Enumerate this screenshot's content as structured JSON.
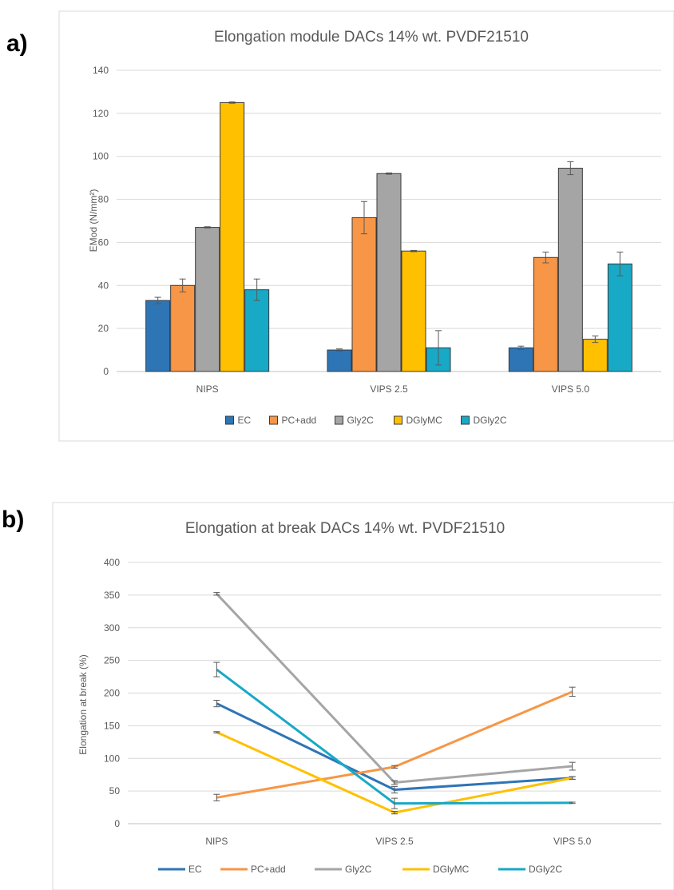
{
  "chart_data": [
    {
      "panel_label": "a)",
      "type": "bar",
      "title": "Elongation module DACs 14% wt. PVDF21510",
      "xlabel": "",
      "ylabel": "EMod (N/mm²)",
      "ylim": [
        0,
        140
      ],
      "yticks": [
        0,
        20,
        40,
        60,
        80,
        100,
        120,
        140
      ],
      "categories": [
        "NIPS",
        "VIPS 2.5",
        "VIPS 5.0"
      ],
      "grid": true,
      "legend_position": "bottom",
      "series": [
        {
          "name": "EC",
          "color": "#2e75b6",
          "values": [
            33,
            10,
            11
          ],
          "errors": [
            1.5,
            0.5,
            0.8
          ]
        },
        {
          "name": "PC+add",
          "color": "#f79646",
          "values": [
            40,
            71.5,
            53
          ],
          "errors": [
            3,
            7.5,
            2.5
          ]
        },
        {
          "name": "Gly2C",
          "color": "#a5a5a5",
          "values": [
            67,
            92,
            94.5
          ],
          "errors": [
            0.3,
            0.3,
            3
          ]
        },
        {
          "name": "DGlyMC",
          "color": "#ffc000",
          "values": [
            125,
            56,
            15
          ],
          "errors": [
            0.3,
            0.3,
            1.5
          ]
        },
        {
          "name": "DGly2C",
          "color": "#17a9c6",
          "values": [
            38,
            11,
            50
          ],
          "errors": [
            5,
            8,
            5.5
          ]
        }
      ]
    },
    {
      "panel_label": "b)",
      "type": "line",
      "title": "Elongation at break DACs 14% wt. PVDF21510",
      "xlabel": "",
      "ylabel": "Elongation at break (%)",
      "ylim": [
        0,
        400
      ],
      "yticks": [
        0,
        50,
        100,
        150,
        200,
        250,
        300,
        350,
        400
      ],
      "categories": [
        "NIPS",
        "VIPS 2.5",
        "VIPS 5.0"
      ],
      "grid": true,
      "legend_position": "bottom",
      "series": [
        {
          "name": "EC",
          "color": "#2e75b6",
          "values": [
            184,
            52,
            70
          ],
          "errors": [
            5,
            5,
            2
          ]
        },
        {
          "name": "PC+add",
          "color": "#f79646",
          "values": [
            40,
            87,
            202
          ],
          "errors": [
            5,
            2,
            7
          ]
        },
        {
          "name": "Gly2C",
          "color": "#a5a5a5",
          "values": [
            352,
            63,
            88
          ],
          "errors": [
            2,
            3,
            6
          ]
        },
        {
          "name": "DGlyMC",
          "color": "#ffc000",
          "values": [
            140,
            17,
            70
          ],
          "errors": [
            1,
            2,
            2
          ]
        },
        {
          "name": "DGly2C",
          "color": "#17a9c6",
          "values": [
            236,
            31,
            32
          ],
          "errors": [
            11,
            8,
            1
          ]
        }
      ]
    }
  ]
}
